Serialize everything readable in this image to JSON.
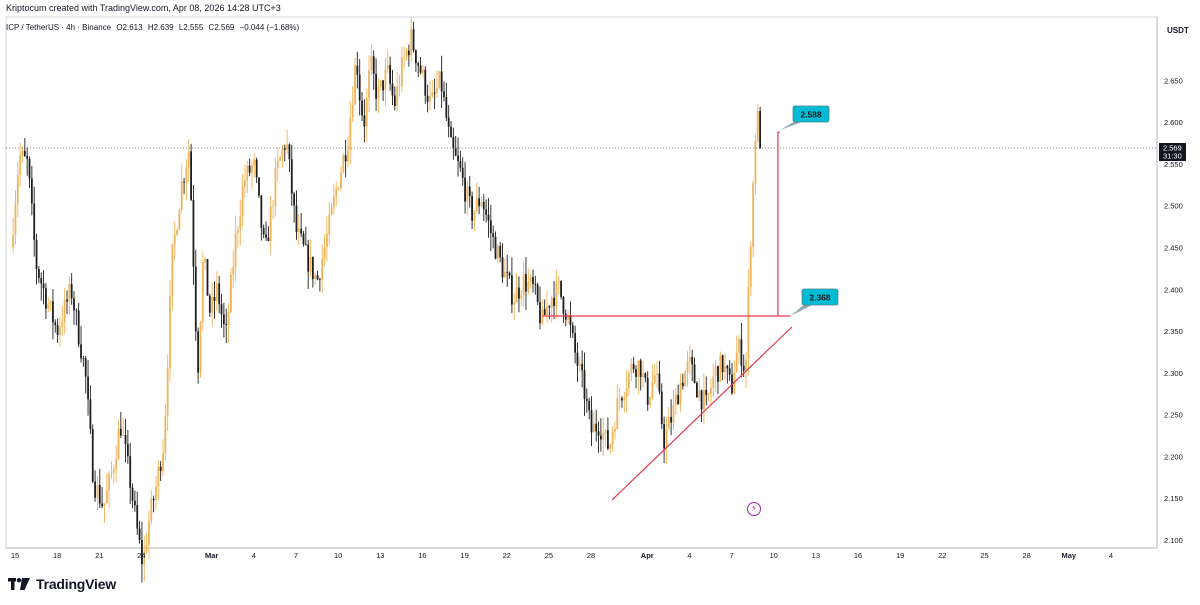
{
  "header": {
    "attribution": "Kriptocum created with TradingView.com, Apr 08, 2026 14:28 UTC+3",
    "symbol": "ICP / TetherUS · 4h · Binance",
    "open": "O2.613",
    "high": "H2.639",
    "low": "L2.555",
    "close": "C2.569",
    "change": "−0.044 (−1.68%)"
  },
  "axis": {
    "currency": "USDT",
    "price_ticks": [
      "2.650",
      "2.600",
      "2.550",
      "2.500",
      "2.450",
      "2.400",
      "2.350",
      "2.300",
      "2.250",
      "2.200",
      "2.150",
      "2.100"
    ],
    "date_ticks": [
      {
        "label": "15",
        "day": 0,
        "bold": false
      },
      {
        "label": "18",
        "day": 3,
        "bold": false
      },
      {
        "label": "21",
        "day": 6,
        "bold": false
      },
      {
        "label": "24",
        "day": 9,
        "bold": false
      },
      {
        "label": "Mar",
        "day": 14,
        "bold": true
      },
      {
        "label": "4",
        "day": 17,
        "bold": false
      },
      {
        "label": "7",
        "day": 20,
        "bold": false
      },
      {
        "label": "10",
        "day": 23,
        "bold": false
      },
      {
        "label": "13",
        "day": 26,
        "bold": false
      },
      {
        "label": "16",
        "day": 29,
        "bold": false
      },
      {
        "label": "19",
        "day": 32,
        "bold": false
      },
      {
        "label": "22",
        "day": 35,
        "bold": false
      },
      {
        "label": "25",
        "day": 38,
        "bold": false
      },
      {
        "label": "28",
        "day": 41,
        "bold": false
      },
      {
        "label": "Apr",
        "day": 45,
        "bold": true
      },
      {
        "label": "4",
        "day": 48,
        "bold": false
      },
      {
        "label": "7",
        "day": 51,
        "bold": false
      },
      {
        "label": "10",
        "day": 54,
        "bold": false
      },
      {
        "label": "13",
        "day": 57,
        "bold": false
      },
      {
        "label": "16",
        "day": 60,
        "bold": false
      },
      {
        "label": "19",
        "day": 63,
        "bold": false
      },
      {
        "label": "22",
        "day": 66,
        "bold": false
      },
      {
        "label": "25",
        "day": 69,
        "bold": false
      },
      {
        "label": "28",
        "day": 72,
        "bold": false
      },
      {
        "label": "May",
        "day": 75,
        "bold": true
      },
      {
        "label": "4",
        "day": 78,
        "bold": false
      }
    ]
  },
  "current_price": {
    "value": 2.569,
    "label": "2.569",
    "countdown": "31:30"
  },
  "annotations": {
    "target_label": "2.588",
    "target_value": 2.588,
    "support_label": "2.368",
    "support_value": 2.368,
    "trendline": {
      "start_day": 42.5,
      "start_price": 2.148,
      "end_day": 55.3,
      "end_price": 2.355
    },
    "support_line": {
      "start_day": 37.5,
      "end_day": 55.2
    },
    "measure_day": 54.3
  },
  "chart_data": {
    "type": "candlestick",
    "title": "ICP / TetherUS · 4h · Binance",
    "xlabel": "",
    "ylabel": "",
    "ylim": [
      2.09,
      2.73
    ],
    "x_unit": "days since Feb 15",
    "candle_interval": "4h",
    "waypoints_day": [
      -0.3,
      0.3,
      0.9,
      1.5,
      2.2,
      3.0,
      4.0,
      5.0,
      5.6,
      6.3,
      6.9,
      7.5,
      8.2,
      8.7,
      9.1,
      9.5,
      10.0,
      10.6,
      11.2,
      11.8,
      12.4,
      13.0,
      13.4,
      13.9,
      14.4,
      15.0,
      15.7,
      16.3,
      17.0,
      17.8,
      18.6,
      19.3,
      20.0,
      20.7,
      21.5,
      22.3,
      23.0,
      23.7,
      24.3,
      24.6,
      24.9,
      25.3,
      25.8,
      26.5,
      27.0,
      27.6,
      28.2,
      28.9,
      29.6,
      30.3,
      31.0,
      31.7,
      32.5,
      33.2,
      34.0,
      34.8,
      35.5,
      36.2,
      36.9,
      37.5,
      38.1,
      38.7,
      39.3,
      39.9,
      40.5,
      41.0,
      41.6,
      42.0,
      42.3,
      42.6,
      43.0,
      43.5,
      44.0,
      44.5,
      45.0,
      45.6,
      46.2,
      46.8,
      47.4,
      48.0,
      48.6,
      49.2,
      49.8,
      50.4,
      51.0,
      51.3,
      51.6,
      52.0,
      52.3,
      52.6,
      52.8,
      53.0
    ],
    "waypoints_price": [
      2.45,
      2.56,
      2.55,
      2.43,
      2.39,
      2.35,
      2.4,
      2.3,
      2.17,
      2.14,
      2.18,
      2.24,
      2.17,
      2.11,
      2.07,
      2.12,
      2.16,
      2.22,
      2.44,
      2.52,
      2.57,
      2.3,
      2.44,
      2.37,
      2.4,
      2.34,
      2.46,
      2.53,
      2.55,
      2.44,
      2.54,
      2.58,
      2.47,
      2.44,
      2.41,
      2.47,
      2.53,
      2.58,
      2.68,
      2.62,
      2.6,
      2.67,
      2.63,
      2.66,
      2.62,
      2.67,
      2.7,
      2.66,
      2.62,
      2.65,
      2.57,
      2.54,
      2.49,
      2.51,
      2.46,
      2.42,
      2.39,
      2.41,
      2.4,
      2.36,
      2.39,
      2.4,
      2.37,
      2.32,
      2.28,
      2.23,
      2.24,
      2.22,
      2.21,
      2.24,
      2.27,
      2.29,
      2.31,
      2.31,
      2.27,
      2.3,
      2.22,
      2.25,
      2.29,
      2.31,
      2.28,
      2.26,
      2.3,
      2.31,
      2.28,
      2.32,
      2.33,
      2.3,
      2.44,
      2.55,
      2.62,
      2.569
    ]
  }
}
